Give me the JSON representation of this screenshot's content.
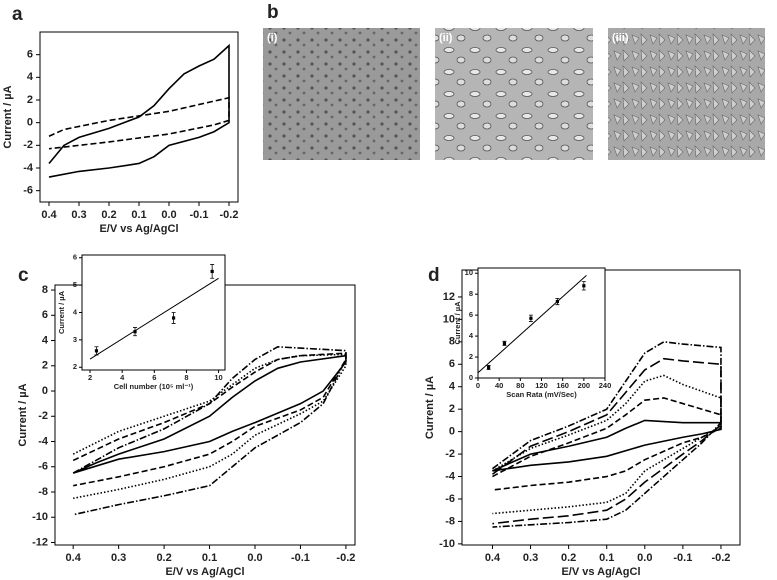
{
  "chart_data": [
    {
      "type": "line",
      "label": "a",
      "xlabel": "E/V vs Ag/AgCl",
      "ylabel": "Current / µA",
      "xlim": [
        0.43,
        -0.23
      ],
      "ylim": [
        -7,
        8
      ],
      "xticks": [
        0.4,
        0.3,
        0.2,
        0.1,
        {
          "value": 0,
          "label": "0.0"
        },
        -0.1,
        -0.2
      ],
      "yticks": [
        -6,
        -4,
        -2,
        0,
        2,
        4,
        6
      ],
      "series": [
        {
          "dash": "solid",
          "color": "#000",
          "x": [
            0.4,
            0.35,
            0.3,
            0.2,
            0.1,
            0.05,
            0.0,
            -0.05,
            -0.1,
            -0.15,
            -0.2,
            -0.2,
            -0.15,
            -0.1,
            0.0,
            0.05,
            0.1,
            0.2,
            0.3,
            0.4
          ],
          "values": [
            -3.6,
            -2,
            -1.3,
            -0.5,
            0.5,
            1.5,
            3,
            4.3,
            5,
            5.6,
            6.8,
            0,
            -0.8,
            -1.3,
            -2,
            -3,
            -3.6,
            -4,
            -4.3,
            -4.8
          ]
        },
        {
          "dash": "dashed",
          "color": "#000",
          "x": [
            0.4,
            0.35,
            0.2,
            0.0,
            -0.2,
            -0.2,
            -0.15,
            0.0,
            0.2,
            0.4
          ],
          "values": [
            -1.2,
            -0.6,
            0.2,
            1,
            2.2,
            0.2,
            -0.2,
            -1,
            -1.7,
            -2.3
          ]
        }
      ]
    },
    {
      "type": "line",
      "label": "c",
      "xlabel": "E/V vs Ag/AgCl",
      "ylabel": "Current / µA",
      "xlim": [
        0.44,
        -0.22
      ],
      "ylim": [
        -12.2,
        8.4
      ],
      "xticks": [
        0.4,
        0.3,
        0.2,
        0.1,
        {
          "value": 0,
          "label": "0.0"
        },
        -0.1,
        -0.2
      ],
      "yticks": [
        -12,
        -10,
        -8,
        -6,
        -4,
        -2,
        0,
        2,
        4,
        6,
        8
      ],
      "series": [
        {
          "dash": "solid",
          "color": "#000",
          "x": [
            0.4,
            0.35,
            0.3,
            0.2,
            0.1,
            0.05,
            0.0,
            -0.05,
            -0.1,
            -0.2,
            -0.2,
            -0.15,
            -0.1,
            0.0,
            0.05,
            0.1,
            0.2,
            0.3,
            0.4
          ],
          "values": [
            -6.5,
            -5.7,
            -5,
            -3.8,
            -2,
            -0.5,
            0.8,
            1.8,
            2.3,
            2.8,
            2.3,
            0,
            -1,
            -2.5,
            -3.2,
            -4,
            -4.8,
            -5.4,
            -6.5
          ]
        },
        {
          "dash": "dashed",
          "color": "#000",
          "x": [
            0.4,
            0.3,
            0.2,
            0.1,
            0.05,
            0.0,
            -0.05,
            -0.1,
            -0.2,
            -0.2,
            -0.15,
            -0.1,
            0.0,
            0.05,
            0.1,
            0.2,
            0.3,
            0.4
          ],
          "values": [
            -5.5,
            -3.8,
            -2.5,
            -1,
            0.3,
            1.5,
            2.5,
            2.8,
            3,
            2.5,
            -0.5,
            -1.5,
            -2.8,
            -4,
            -5,
            -6,
            -6.8,
            -7.5
          ]
        },
        {
          "dash": "dotted",
          "color": "#000",
          "x": [
            0.4,
            0.3,
            0.2,
            0.1,
            0.05,
            0.0,
            -0.05,
            -0.1,
            -0.2,
            -0.2,
            -0.15,
            -0.1,
            0.0,
            0.05,
            0.1,
            0.2,
            0.3,
            0.4
          ],
          "values": [
            -5,
            -3.2,
            -2,
            -0.8,
            0.5,
            1.8,
            2.5,
            2.8,
            2.9,
            2,
            -0.8,
            -1.8,
            -3.5,
            -5,
            -6,
            -7,
            -7.8,
            -8.5
          ]
        },
        {
          "dash": "dashdot",
          "color": "#000",
          "x": [
            0.4,
            0.3,
            0.2,
            0.1,
            0.05,
            0.0,
            -0.05,
            -0.1,
            -0.2,
            -0.2,
            -0.15,
            -0.1,
            0.0,
            0.05,
            0.1,
            0.2,
            0.3,
            0.4
          ],
          "values": [
            -6.5,
            -4.5,
            -3,
            -1,
            1,
            2.5,
            3.5,
            3.4,
            3.2,
            2.5,
            -1,
            -2.5,
            -4.5,
            -6,
            -7.5,
            -8.3,
            -9,
            -9.8
          ]
        }
      ],
      "inset": {
        "type": "scatter",
        "xlabel": "Cell number (10⁵ ml⁻¹)",
        "ylabel": "Current / µA",
        "xlim": [
          1.5,
          10.4
        ],
        "ylim": [
          1.9,
          6.1
        ],
        "xticks": [
          2,
          4,
          6,
          8,
          10
        ],
        "yticks": [
          2,
          3,
          4,
          5,
          6
        ],
        "x": [
          2.4,
          4.8,
          7.2,
          9.6
        ],
        "values": [
          2.6,
          3.3,
          3.8,
          5.5
        ],
        "errors": [
          0.15,
          0.15,
          0.2,
          0.25
        ],
        "fit": {
          "x": [
            2,
            10
          ],
          "values": [
            2.3,
            5.25
          ]
        }
      }
    },
    {
      "type": "line",
      "label": "d",
      "xlabel": "E/V vs Ag/AgCl",
      "ylabel": "Current / µA",
      "xlim": [
        0.48,
        -0.25
      ],
      "ylim": [
        -10.1,
        14.4
      ],
      "xticks": [
        0.4,
        0.3,
        0.2,
        0.1,
        {
          "value": 0,
          "label": "0.0"
        },
        -0.1,
        -0.2
      ],
      "yticks": [
        -10,
        -8,
        -6,
        -4,
        -2,
        0,
        2,
        4,
        6,
        8,
        10,
        12
      ],
      "series": [
        {
          "dash": "solid",
          "color": "#000",
          "x": [
            0.4,
            0.3,
            0.2,
            0.1,
            0.05,
            0.0,
            -0.05,
            -0.1,
            -0.2,
            -0.2,
            -0.15,
            -0.1,
            0.0,
            0.1,
            0.2,
            0.3,
            0.4
          ],
          "values": [
            -3.5,
            -2,
            -1.3,
            -0.5,
            0.3,
            1,
            0.9,
            0.8,
            0.8,
            0.2,
            -0.2,
            -0.5,
            -1.2,
            -2.2,
            -2.7,
            -3,
            -3.5
          ]
        },
        {
          "dash": "dashed",
          "color": "#000",
          "x": [
            0.4,
            0.3,
            0.2,
            0.1,
            0.05,
            0.0,
            -0.05,
            -0.1,
            -0.2,
            -0.2,
            -0.15,
            -0.1,
            0.0,
            0.05,
            0.1,
            0.2,
            0.3,
            0.4
          ],
          "values": [
            -4,
            -2.2,
            -1,
            0.3,
            1.5,
            2.8,
            3,
            2.5,
            1.5,
            0.3,
            -0.5,
            -1,
            -2.5,
            -3.5,
            -4,
            -4.5,
            -4.8,
            -5.2
          ]
        },
        {
          "dash": "dotted",
          "color": "#000",
          "x": [
            0.4,
            0.3,
            0.2,
            0.1,
            0.05,
            0.0,
            -0.05,
            -0.1,
            -0.2,
            -0.2,
            -0.15,
            -0.1,
            0.0,
            0.05,
            0.1,
            0.2,
            0.3,
            0.4
          ],
          "values": [
            -3.5,
            -1.5,
            -0.3,
            1,
            2.5,
            4.5,
            5,
            4.2,
            3,
            0.5,
            -0.5,
            -1.5,
            -3.5,
            -5.5,
            -6.3,
            -6.7,
            -7,
            -7.3
          ]
        },
        {
          "dash": "longdash",
          "color": "#000",
          "x": [
            0.4,
            0.3,
            0.2,
            0.1,
            0.05,
            0.0,
            -0.05,
            -0.1,
            -0.2,
            -0.2,
            -0.15,
            -0.1,
            0.0,
            0.05,
            0.1,
            0.2,
            0.3,
            0.4
          ],
          "values": [
            -3.8,
            -1.3,
            0,
            1.5,
            3.5,
            5.5,
            6.5,
            6.3,
            6,
            0.6,
            -0.8,
            -2,
            -4.5,
            -6,
            -7,
            -7.5,
            -7.8,
            -8.2
          ]
        },
        {
          "dash": "dashdot",
          "color": "#000",
          "x": [
            0.4,
            0.3,
            0.2,
            0.1,
            0.05,
            0.0,
            -0.05,
            -0.1,
            -0.2,
            -0.2,
            -0.15,
            -0.1,
            0.0,
            0.05,
            0.1,
            0.2,
            0.3,
            0.4
          ],
          "values": [
            -3.3,
            -0.8,
            0.5,
            2,
            4.5,
            7,
            8,
            7.8,
            7.5,
            0.8,
            -1,
            -2.5,
            -5.5,
            -7,
            -7.8,
            -8.1,
            -8.3,
            -8.5
          ]
        }
      ],
      "inset": {
        "type": "scatter",
        "xlabel": "Scan Rata (mV/Sec)",
        "ylabel": "Current / µA",
        "xlim": [
          0,
          240
        ],
        "ylim": [
          0,
          10.5
        ],
        "xticks": [
          0,
          40,
          80,
          120,
          160,
          200,
          240
        ],
        "yticks": [
          0,
          2,
          4,
          6,
          8,
          10
        ],
        "x": [
          20,
          50,
          100,
          150,
          200
        ],
        "values": [
          1.0,
          3.3,
          5.7,
          7.3,
          8.8
        ],
        "errors": [
          0.2,
          0.2,
          0.3,
          0.3,
          0.4
        ],
        "fit": {
          "x": [
            0,
            205
          ],
          "values": [
            0.5,
            9.8
          ]
        }
      }
    }
  ],
  "images": {
    "label": "b",
    "captions": [
      "(i)",
      "(ii)",
      "(iii)"
    ]
  }
}
